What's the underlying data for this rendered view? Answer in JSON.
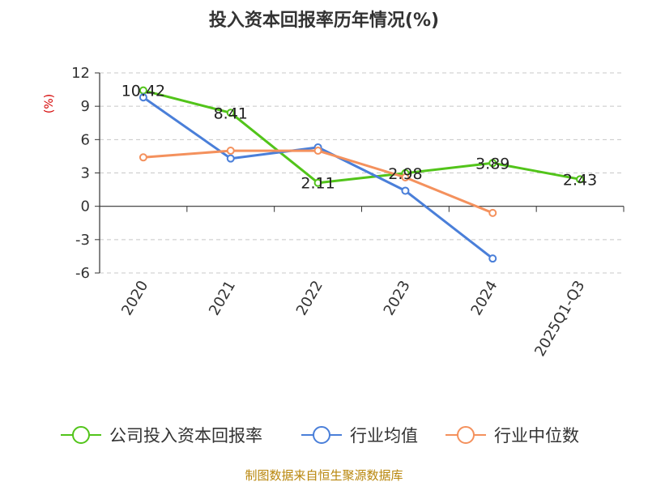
{
  "chart_data": {
    "type": "line",
    "title": "投入资本回报率历年情况(%)",
    "unit_label": "(%)",
    "categories": [
      "2020",
      "2021",
      "2022",
      "2023",
      "2024",
      "2025Q1-Q3"
    ],
    "ylim": [
      -6,
      12
    ],
    "yticks": [
      12,
      9,
      6,
      3,
      0,
      -3,
      -6
    ],
    "grid": true,
    "legend_position": "bottom",
    "series": [
      {
        "name": "公司投入资本回报率",
        "color": "#52c41a",
        "values": [
          10.42,
          8.41,
          2.11,
          2.98,
          3.89,
          2.43
        ],
        "labels": [
          "10.42",
          "8.41",
          "2.11",
          "2.98",
          "3.89",
          "2.43"
        ]
      },
      {
        "name": "行业均值",
        "color": "#4a7fd9",
        "values": [
          9.8,
          4.3,
          5.3,
          1.4,
          -4.7,
          null
        ]
      },
      {
        "name": "行业中位数",
        "color": "#f4915d",
        "values": [
          4.4,
          5.0,
          5.0,
          2.6,
          -0.6,
          null
        ]
      }
    ]
  },
  "source": "制图数据来自恒生聚源数据库"
}
